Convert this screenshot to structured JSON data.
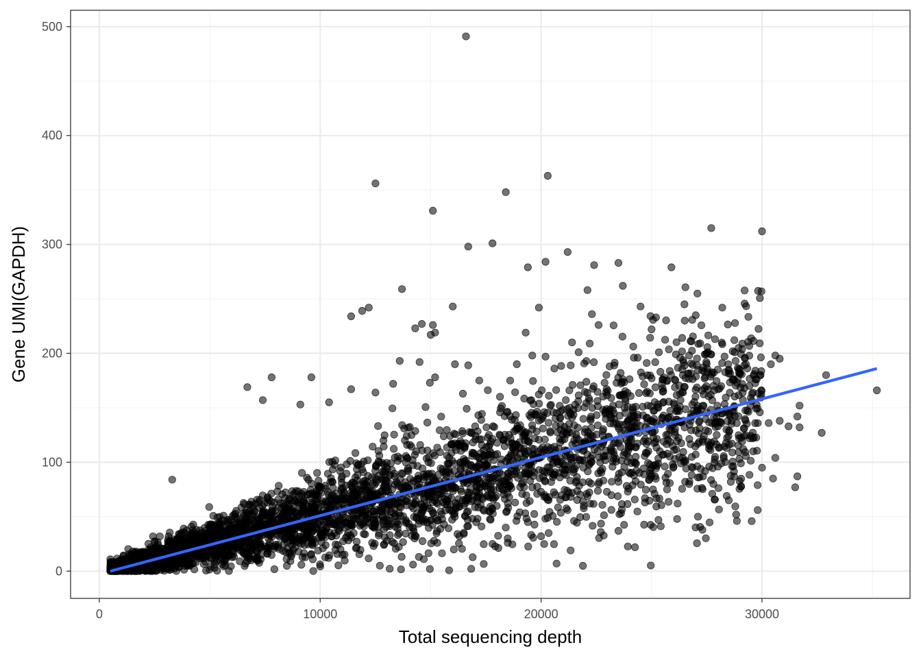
{
  "chart_data": {
    "type": "scatter",
    "title": "",
    "xlabel": "Total sequencing depth",
    "ylabel": "Gene UMI(GAPDH)",
    "xlim": [
      -1300,
      36700
    ],
    "ylim": [
      -25,
      515
    ],
    "x_ticks": [
      0,
      10000,
      20000,
      30000
    ],
    "y_ticks": [
      0,
      100,
      200,
      300,
      400,
      500
    ],
    "x_tick_labels": [
      "0",
      "10000",
      "20000",
      "30000"
    ],
    "y_tick_labels": [
      "0",
      "100",
      "200",
      "300",
      "400",
      "500"
    ],
    "grid": true,
    "legend": "none",
    "point_color": "#000000",
    "point_opacity": 0.55,
    "fit_line": {
      "type": "linear",
      "color": "#3366FF",
      "x": [
        500,
        35200
      ],
      "y": [
        0,
        186
      ]
    },
    "outliers": [
      [
        16600,
        491
      ],
      [
        12500,
        356
      ],
      [
        20300,
        363
      ],
      [
        18400,
        348
      ],
      [
        15100,
        331
      ],
      [
        16700,
        298
      ],
      [
        17800,
        301
      ],
      [
        21200,
        293
      ],
      [
        27700,
        315
      ],
      [
        30000,
        312
      ],
      [
        20200,
        284
      ],
      [
        19400,
        279
      ],
      [
        22400,
        281
      ],
      [
        23500,
        283
      ],
      [
        25900,
        279
      ],
      [
        23700,
        262
      ],
      [
        22100,
        258
      ],
      [
        13700,
        259
      ],
      [
        12200,
        242
      ],
      [
        11400,
        234
      ],
      [
        11900,
        239
      ],
      [
        16000,
        243
      ],
      [
        19900,
        242
      ],
      [
        24500,
        243
      ],
      [
        28200,
        242
      ],
      [
        14600,
        227
      ],
      [
        15100,
        226
      ],
      [
        14300,
        223
      ],
      [
        15200,
        219
      ],
      [
        15000,
        217
      ],
      [
        19300,
        219
      ],
      [
        25200,
        233
      ],
      [
        26500,
        230
      ],
      [
        27000,
        235
      ],
      [
        25000,
        222
      ],
      [
        22300,
        236
      ],
      [
        22600,
        226
      ],
      [
        27500,
        200
      ],
      [
        27700,
        199
      ],
      [
        29700,
        184
      ],
      [
        30400,
        190
      ],
      [
        30600,
        198
      ],
      [
        30800,
        195
      ],
      [
        29900,
        180
      ],
      [
        31600,
        142
      ],
      [
        31700,
        152
      ],
      [
        31700,
        132
      ],
      [
        32700,
        127
      ],
      [
        32900,
        180
      ],
      [
        35200,
        166
      ],
      [
        31500,
        77
      ],
      [
        31600,
        87
      ],
      [
        30600,
        104
      ],
      [
        30500,
        85
      ],
      [
        29800,
        79
      ],
      [
        27100,
        50
      ],
      [
        27300,
        38
      ],
      [
        28400,
        69
      ],
      [
        20700,
        7
      ],
      [
        12700,
        5
      ],
      [
        14200,
        6
      ],
      [
        3300,
        84
      ],
      [
        6700,
        169
      ],
      [
        7400,
        157
      ],
      [
        7800,
        178
      ],
      [
        9100,
        153
      ],
      [
        9600,
        178
      ],
      [
        10400,
        155
      ],
      [
        11400,
        167
      ],
      [
        12500,
        164
      ],
      [
        13300,
        172
      ],
      [
        13600,
        193
      ],
      [
        14500,
        192
      ],
      [
        15200,
        178
      ],
      [
        16100,
        190
      ],
      [
        16700,
        189
      ],
      [
        17200,
        175
      ],
      [
        18600,
        175
      ],
      [
        18900,
        190
      ],
      [
        19600,
        198
      ],
      [
        20200,
        197
      ],
      [
        20600,
        186
      ],
      [
        21400,
        210
      ],
      [
        21700,
        201
      ],
      [
        22200,
        209
      ],
      [
        23100,
        188
      ],
      [
        23600,
        182
      ],
      [
        24200,
        196
      ],
      [
        25400,
        183
      ],
      [
        26100,
        199
      ],
      [
        26700,
        198
      ],
      [
        27400,
        168
      ],
      [
        28900,
        177
      ],
      [
        29200,
        168
      ],
      [
        29100,
        119
      ],
      [
        29600,
        110
      ],
      [
        30300,
        136
      ],
      [
        30800,
        138
      ],
      [
        31200,
        133
      ],
      [
        28400,
        113
      ],
      [
        27100,
        117
      ],
      [
        26400,
        104
      ],
      [
        25600,
        96
      ],
      [
        24900,
        84
      ],
      [
        24200,
        88
      ],
      [
        23500,
        82
      ],
      [
        22600,
        80
      ],
      [
        21900,
        64
      ],
      [
        21200,
        56
      ],
      [
        20300,
        49
      ],
      [
        19400,
        45
      ],
      [
        18400,
        40
      ],
      [
        17300,
        41
      ],
      [
        16300,
        32
      ],
      [
        15300,
        26
      ],
      [
        22700,
        36
      ],
      [
        23500,
        37
      ],
      [
        20000,
        32
      ],
      [
        17800,
        25
      ],
      [
        24700,
        63
      ],
      [
        25700,
        75
      ],
      [
        26700,
        80
      ],
      [
        27800,
        80
      ],
      [
        28700,
        96
      ],
      [
        30000,
        95
      ]
    ],
    "dense_cloud": {
      "note": "",
      "slope_per_unit_x": 0.0053,
      "x_range": [
        500,
        30000
      ],
      "count": 4200
    }
  }
}
